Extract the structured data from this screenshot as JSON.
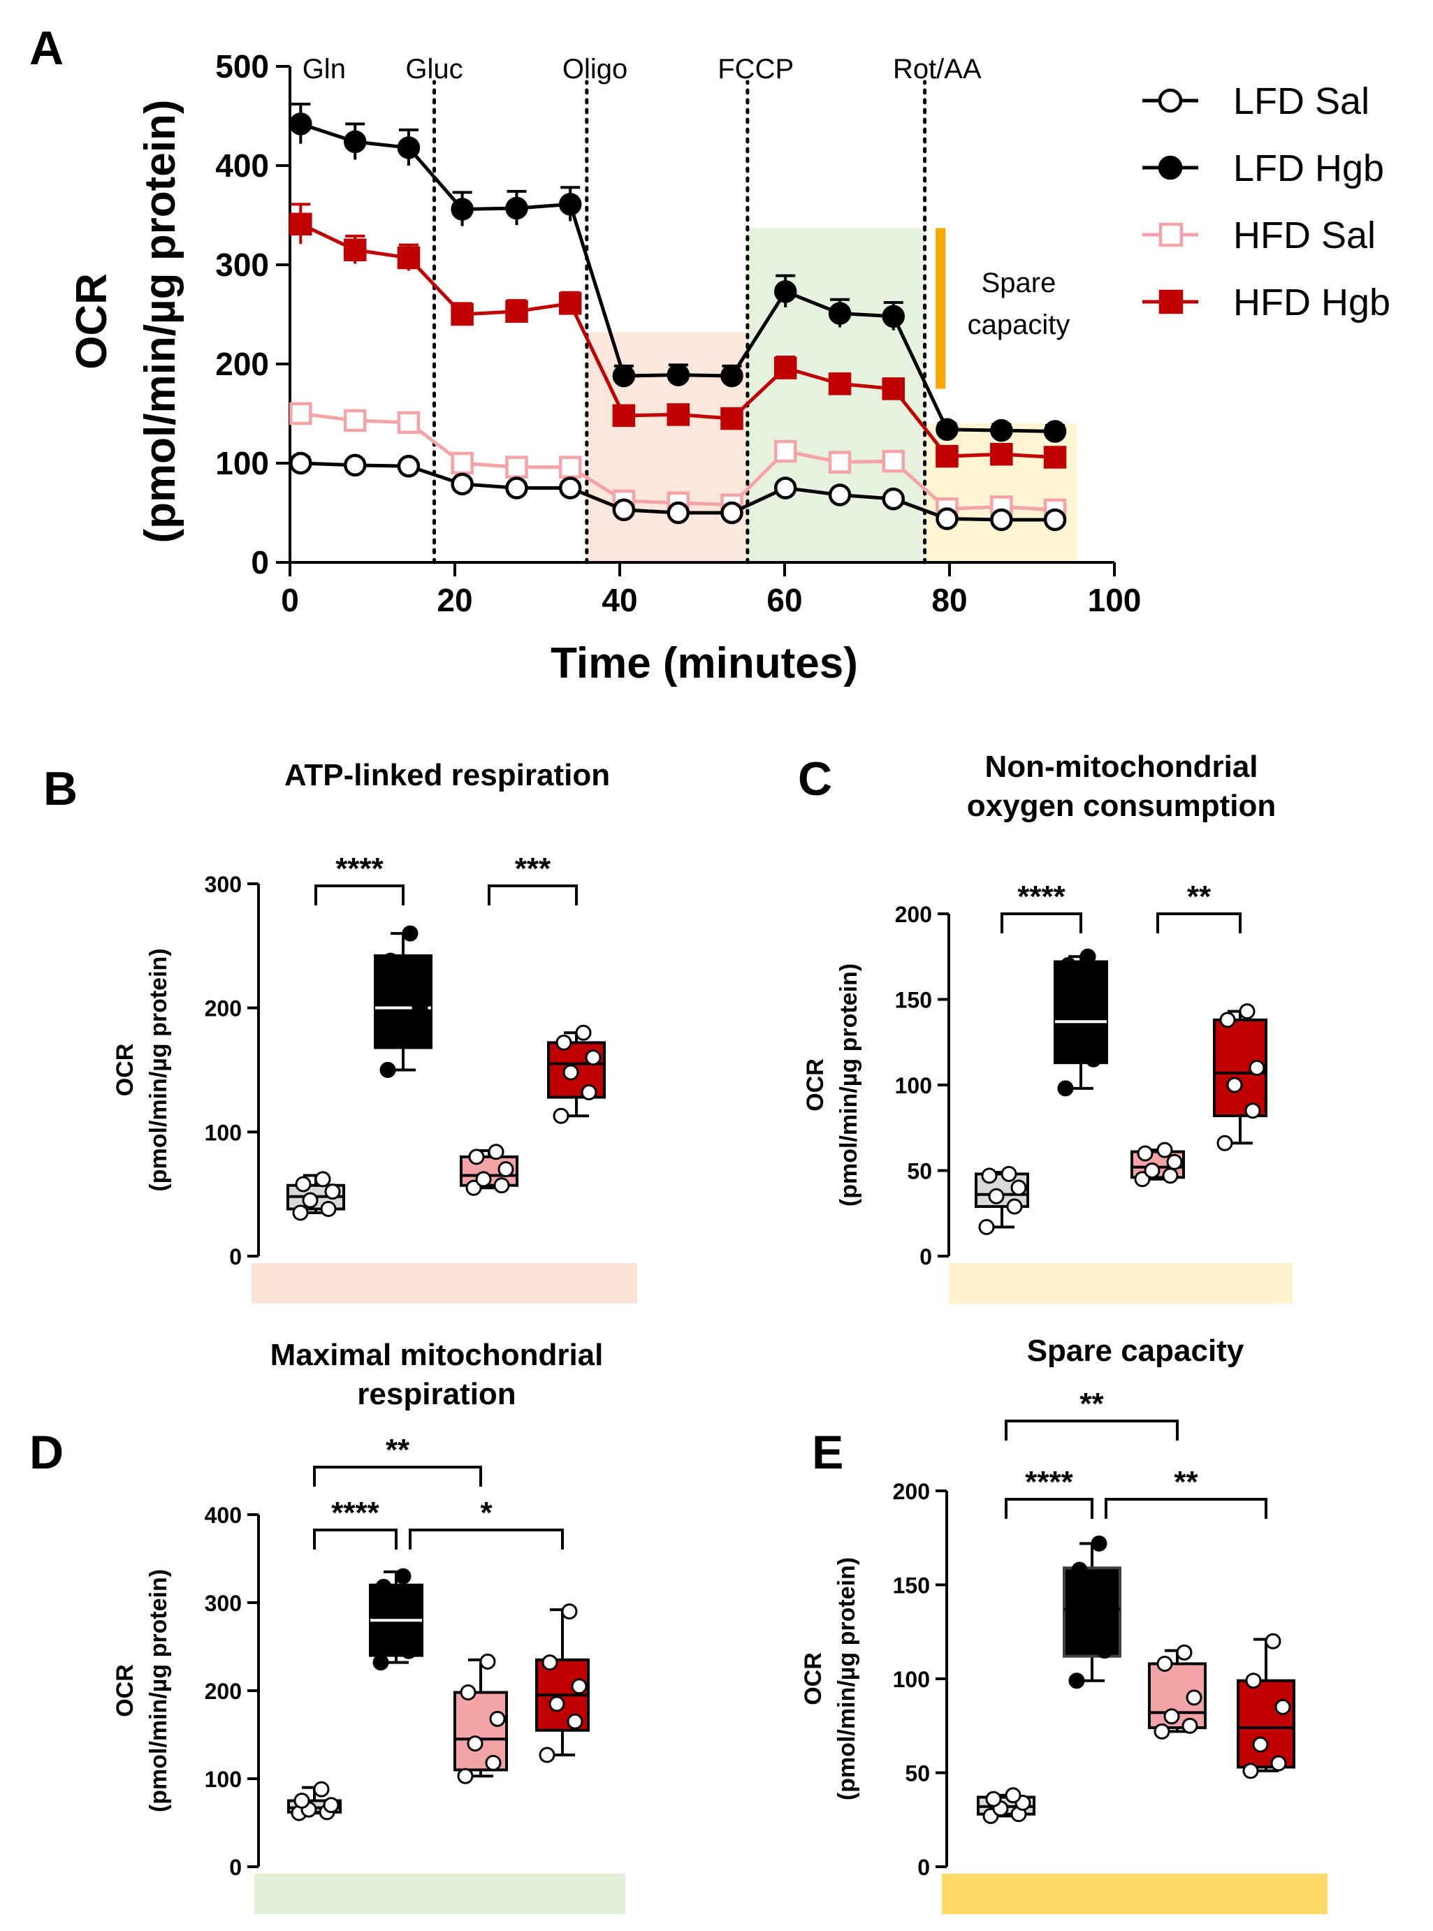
{
  "colors": {
    "lfd_sal": "#000000",
    "lfd_hgb": "#000000",
    "hfd_sal": "#f4a3a6",
    "hfd_hgb": "#c00000",
    "bg_atp": "#fbe3d6",
    "bg_maximal": "#e2f0d9",
    "bg_nonmito": "#fff2cc",
    "bg_spare": "#ffd966",
    "spare_bar": "#f5a800",
    "box_lfd_sal": "#d9d9d9",
    "box_lfd_hgb": "#000000",
    "box_hfd_sal": "#f4a3a6",
    "box_hfd_hgb": "#c00000"
  },
  "panel_a": {
    "letter": "A",
    "injections": [
      "Gln",
      "Gluc",
      "Oligo",
      "FCCP",
      "Rot/AA"
    ],
    "spare_label_line1": "Spare",
    "spare_label_line2": "capacity"
  },
  "chart_data": [
    {
      "type": "line",
      "panel": "A",
      "title": "",
      "xlabel": "Time (minutes)",
      "ylabel": "OCR",
      "ylabel_line2": "(pmol/min/µg protein)",
      "xlim": [
        0,
        100
      ],
      "ylim": [
        0,
        500
      ],
      "xticks": [
        0,
        20,
        40,
        60,
        80,
        100
      ],
      "yticks": [
        0,
        100,
        200,
        300,
        400,
        500
      ],
      "injection_times": [
        17.5,
        36,
        55.5,
        77
      ],
      "x": [
        1.3,
        7.9,
        14.4,
        20.9,
        27.5,
        34,
        40.5,
        47.1,
        53.6,
        60.1,
        66.7,
        73.2,
        79.7,
        86.3,
        92.8
      ],
      "series": [
        {
          "name": "LFD Sal",
          "marker": "open-circle",
          "values": [
            100,
            98,
            97,
            79,
            75,
            75,
            53,
            50,
            50,
            75,
            68,
            64,
            44,
            43,
            43
          ],
          "err": [
            6,
            5,
            5,
            5,
            5,
            5,
            4,
            4,
            4,
            5,
            4,
            4,
            3,
            3,
            3
          ]
        },
        {
          "name": "LFD Hgb",
          "marker": "filled-circle",
          "values": [
            442,
            424,
            418,
            356,
            357,
            361,
            188,
            189,
            188,
            273,
            251,
            248,
            134,
            133,
            132
          ],
          "err": [
            20,
            18,
            18,
            17,
            17,
            17,
            10,
            10,
            10,
            16,
            14,
            14,
            6,
            6,
            6
          ]
        },
        {
          "name": "HFD Sal",
          "marker": "open-square",
          "values": [
            150,
            143,
            141,
            100,
            96,
            96,
            62,
            60,
            58,
            112,
            101,
            102,
            54,
            56,
            53
          ],
          "err": [
            10,
            9,
            9,
            7,
            7,
            7,
            5,
            5,
            5,
            8,
            7,
            7,
            5,
            5,
            5
          ]
        },
        {
          "name": "HFD Hgb",
          "marker": "filled-square",
          "values": [
            341,
            315,
            307,
            250,
            253,
            261,
            148,
            149,
            145,
            196,
            180,
            175,
            107,
            109,
            106
          ],
          "err": [
            20,
            14,
            13,
            11,
            11,
            11,
            8,
            8,
            8,
            11,
            10,
            10,
            6,
            6,
            6
          ]
        }
      ],
      "shaded_regions": [
        {
          "name": "ATP-linked",
          "x0": 36,
          "x1": 55.5,
          "y0": 0,
          "y1": 232
        },
        {
          "name": "Maximal",
          "x0": 55.5,
          "x1": 77,
          "y0": 0,
          "y1": 337
        },
        {
          "name": "Non-mito",
          "x0": 77,
          "x1": 95.5,
          "y0": 0,
          "y1": 140
        }
      ],
      "spare_bar": {
        "x": 79,
        "y0": 175,
        "y1": 337
      },
      "legend_placement": "top-right"
    },
    {
      "type": "box",
      "panel": "B",
      "title": "ATP-linked respiration",
      "ylabel": "OCR",
      "ylabel_line2": "(pmol/min/µg protein)",
      "ylim": [
        0,
        300
      ],
      "yticks": [
        0,
        100,
        200,
        300
      ],
      "groups": [
        {
          "name": "LFD Sal",
          "min": 35,
          "q1": 38,
          "median": 48,
          "q3": 57,
          "max": 65,
          "points": [
            35,
            38,
            45,
            52,
            58,
            62
          ],
          "outline": "#000000"
        },
        {
          "name": "LFD Hgb",
          "min": 150,
          "q1": 168,
          "median": 200,
          "q3": 242,
          "max": 260,
          "points": [
            150,
            180,
            188,
            200,
            238,
            260
          ],
          "outline": "#000000"
        },
        {
          "name": "HFD Sal",
          "min": 55,
          "q1": 57,
          "median": 65,
          "q3": 80,
          "max": 85,
          "points": [
            55,
            57,
            62,
            70,
            80,
            84
          ],
          "outline": "#000000"
        },
        {
          "name": "HFD Hgb",
          "min": 113,
          "q1": 128,
          "median": 155,
          "q3": 172,
          "max": 180,
          "points": [
            113,
            132,
            148,
            160,
            172,
            180
          ],
          "outline": "#000000"
        }
      ],
      "comparisons": [
        {
          "from": 0,
          "to": 1,
          "label": "****",
          "level": 0
        },
        {
          "from": 2,
          "to": 3,
          "label": "***",
          "level": 0
        }
      ]
    },
    {
      "type": "box",
      "panel": "C",
      "title": "Non-mitochondrial",
      "title_line2": "oxygen consumption",
      "ylabel": "OCR",
      "ylabel_line2": "(pmol/min/µg protein)",
      "ylim": [
        0,
        200
      ],
      "yticks": [
        0,
        50,
        100,
        150,
        200
      ],
      "groups": [
        {
          "name": "LFD Sal",
          "min": 17,
          "q1": 29,
          "median": 36,
          "q3": 48,
          "max": 49,
          "points": [
            17,
            29,
            35,
            40,
            47,
            48
          ],
          "outline": "#000000"
        },
        {
          "name": "LFD Hgb",
          "min": 98,
          "q1": 113,
          "median": 137,
          "q3": 172,
          "max": 175,
          "points": [
            98,
            115,
            128,
            145,
            170,
            175
          ],
          "outline": "#000000"
        },
        {
          "name": "HFD Sal",
          "min": 45,
          "q1": 46,
          "median": 52,
          "q3": 61,
          "max": 62,
          "points": [
            45,
            47,
            50,
            55,
            60,
            62
          ],
          "outline": "#000000"
        },
        {
          "name": "HFD Hgb",
          "min": 66,
          "q1": 82,
          "median": 107,
          "q3": 138,
          "max": 143,
          "points": [
            66,
            85,
            100,
            110,
            138,
            143
          ],
          "outline": "#000000"
        }
      ],
      "comparisons": [
        {
          "from": 0,
          "to": 1,
          "label": "****",
          "level": 0
        },
        {
          "from": 2,
          "to": 3,
          "label": "**",
          "level": 0
        }
      ]
    },
    {
      "type": "box",
      "panel": "D",
      "title": "Maximal mitochondrial",
      "title_line2": "respiration",
      "ylabel": "OCR",
      "ylabel_line2": "(pmol/min/µg protein)",
      "ylim": [
        0,
        400
      ],
      "yticks": [
        0,
        100,
        200,
        300,
        400
      ],
      "groups": [
        {
          "name": "LFD Sal",
          "min": 61,
          "q1": 62,
          "median": 67,
          "q3": 75,
          "max": 90,
          "points": [
            61,
            62,
            65,
            70,
            75,
            88
          ],
          "outline": "#000000"
        },
        {
          "name": "LFD Hgb",
          "min": 232,
          "q1": 240,
          "median": 280,
          "q3": 320,
          "max": 335,
          "points": [
            232,
            245,
            265,
            295,
            318,
            330
          ],
          "outline": "#000000"
        },
        {
          "name": "HFD Sal",
          "min": 103,
          "q1": 110,
          "median": 145,
          "q3": 198,
          "max": 235,
          "points": [
            103,
            118,
            140,
            168,
            198,
            233
          ],
          "outline": "#000000"
        },
        {
          "name": "HFD Hgb",
          "min": 127,
          "q1": 155,
          "median": 195,
          "q3": 235,
          "max": 292,
          "points": [
            127,
            165,
            185,
            205,
            232,
            290
          ],
          "outline": "#000000"
        }
      ],
      "comparisons": [
        {
          "from": 0,
          "to": 1,
          "label": "****",
          "level": 0
        },
        {
          "from": 1,
          "to": 3,
          "label": "*",
          "level": 0
        },
        {
          "from": 0,
          "to": 2,
          "label": "**",
          "level": 1
        }
      ]
    },
    {
      "type": "box",
      "panel": "E",
      "title": "Spare capacity",
      "ylabel": "OCR",
      "ylabel_line2": "(pmol/min/µg protein)",
      "ylim": [
        0,
        200
      ],
      "yticks": [
        0,
        50,
        100,
        150,
        200
      ],
      "groups": [
        {
          "name": "LFD Sal",
          "min": 27,
          "q1": 28,
          "median": 32,
          "q3": 37,
          "max": 38,
          "points": [
            27,
            28,
            31,
            34,
            36,
            38
          ],
          "outline": "#000000"
        },
        {
          "name": "LFD Hgb",
          "min": 99,
          "q1": 112,
          "median": 137,
          "q3": 159,
          "max": 172,
          "points": [
            99,
            115,
            128,
            140,
            158,
            172
          ],
          "outline": "#404040"
        },
        {
          "name": "HFD Sal",
          "min": 72,
          "q1": 74,
          "median": 82,
          "q3": 108,
          "max": 115,
          "points": [
            72,
            75,
            80,
            90,
            108,
            114
          ],
          "outline": "#000000"
        },
        {
          "name": "HFD Hgb",
          "min": 51,
          "q1": 53,
          "median": 74,
          "q3": 99,
          "max": 121,
          "points": [
            51,
            55,
            65,
            85,
            99,
            120
          ],
          "outline": "#000000"
        }
      ],
      "comparisons": [
        {
          "from": 0,
          "to": 1,
          "label": "****",
          "level": 0
        },
        {
          "from": 1,
          "to": 3,
          "label": "**",
          "level": 0
        },
        {
          "from": 0,
          "to": 2,
          "label": "**",
          "level": 1
        }
      ]
    }
  ]
}
